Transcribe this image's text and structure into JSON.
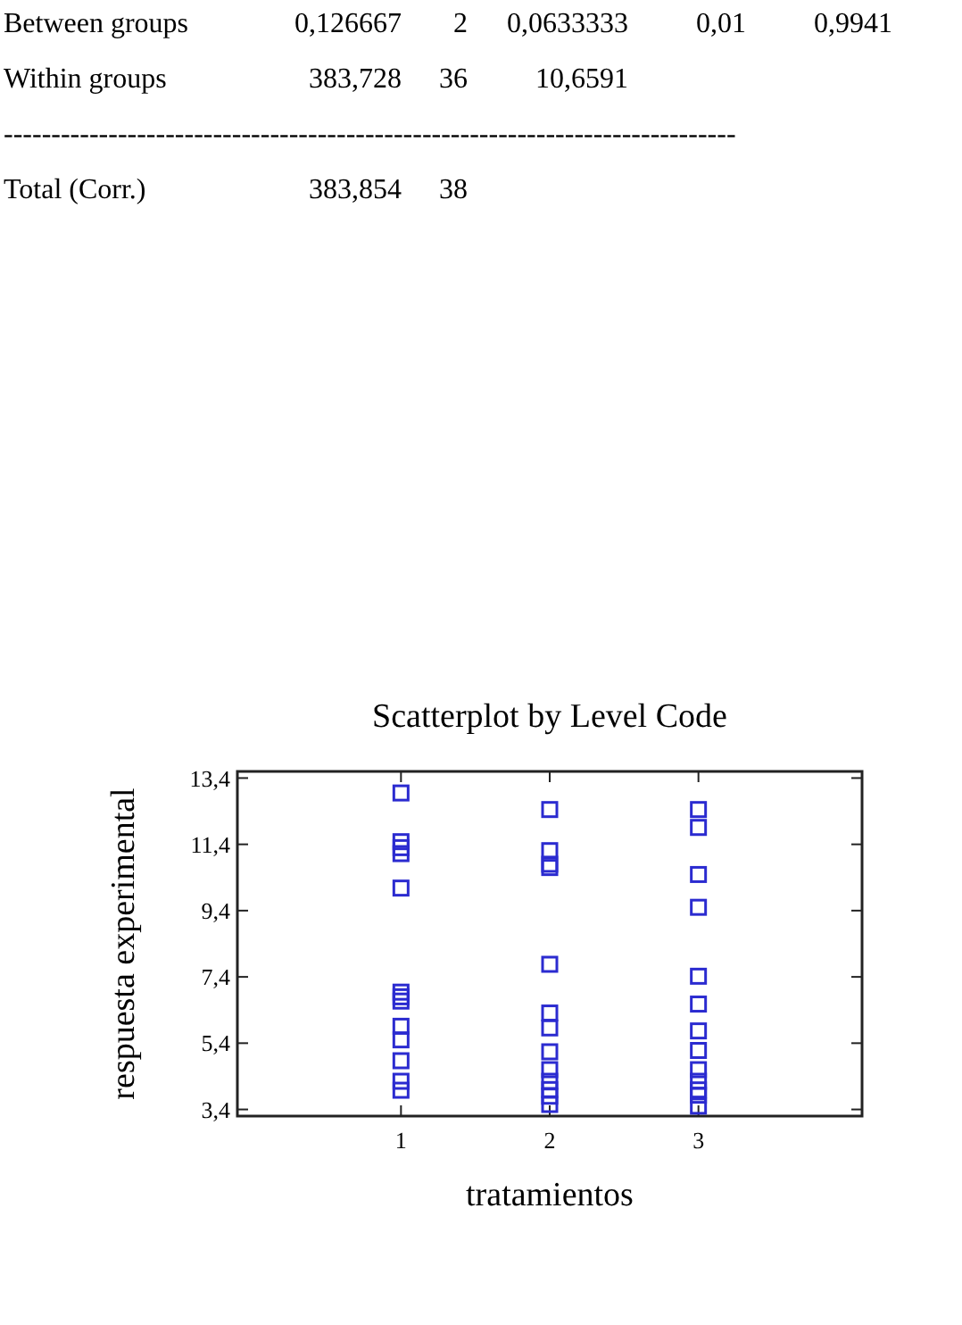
{
  "chart_data": {
    "type": "scatter",
    "title": "Scatterplot by Level Code",
    "xlabel": "tratamientos",
    "ylabel": "respuesta experimental",
    "annotations": [
      "Between groups   0,126667   2   0,0633333   0,01   0,9941",
      "Within groups   383,728   36   10,6591",
      "-----------------------------------------------------------------------------",
      "Total (Corr.)   383,854   38"
    ],
    "xlim": [
      -0.1,
      4.1
    ],
    "xticks": [
      1,
      2,
      3
    ],
    "ylim": [
      3.2,
      13.6
    ],
    "yticks": [
      {
        "value": 3.4,
        "label": "3,4"
      },
      {
        "value": 5.4,
        "label": "5,4"
      },
      {
        "value": 7.4,
        "label": "7,4"
      },
      {
        "value": 9.4,
        "label": "9,4"
      },
      {
        "value": 11.4,
        "label": "11,4"
      },
      {
        "value": 13.4,
        "label": "13,4"
      }
    ],
    "marker": "square",
    "grid": false,
    "series": [
      {
        "color": "#2b2bd0",
        "x": [
          1,
          1,
          1,
          1,
          1,
          1,
          1,
          1,
          1,
          1,
          1,
          1,
          1,
          2,
          2,
          2,
          2,
          2,
          2,
          2,
          2,
          2,
          2,
          2,
          2,
          2,
          3,
          3,
          3,
          3,
          3,
          3,
          3,
          3,
          3,
          3,
          3,
          3,
          3
        ],
        "values": [
          12.95,
          11.48,
          11.3,
          11.12,
          10.08,
          6.94,
          6.8,
          6.67,
          5.91,
          5.5,
          4.87,
          4.25,
          3.98,
          12.45,
          11.21,
          10.8,
          10.7,
          7.78,
          6.31,
          5.86,
          5.14,
          4.6,
          4.25,
          4.0,
          3.8,
          3.55,
          12.45,
          11.91,
          10.49,
          9.5,
          7.42,
          6.58,
          5.77,
          5.18,
          4.6,
          4.25,
          3.99,
          3.83,
          3.5
        ]
      }
    ]
  }
}
